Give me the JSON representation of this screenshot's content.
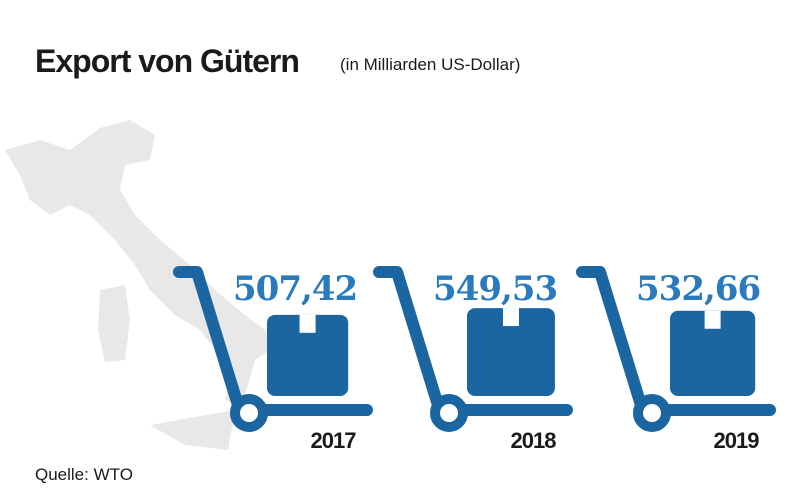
{
  "chart_data": {
    "type": "pictograph",
    "title": "Export von Gütern",
    "subtitle": "(in Milliarden US-Dollar)",
    "categories": [
      "2017",
      "2018",
      "2019"
    ],
    "values": [
      507.42,
      549.53,
      532.66
    ],
    "value_labels": [
      "507,42",
      "549,53",
      "532,66"
    ],
    "color": "#1b65a0",
    "label_color": "#2a7bbd",
    "source": "Quelle: WTO"
  }
}
